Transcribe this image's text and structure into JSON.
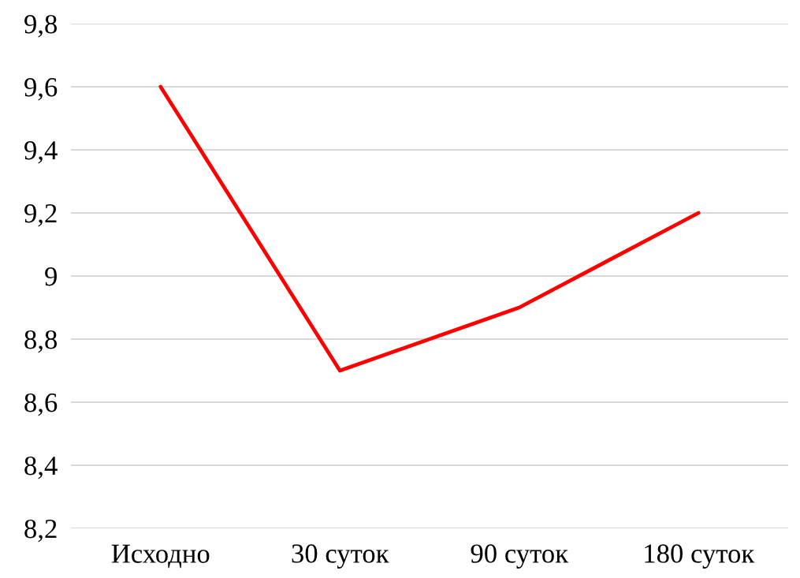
{
  "chart_data": {
    "type": "line",
    "categories": [
      "Исходно",
      "30 суток",
      "90 суток",
      "180 суток"
    ],
    "series": [
      {
        "color": "#ff0000",
        "values": [
          9.6,
          8.7,
          8.9,
          9.2
        ]
      }
    ],
    "ylim": [
      8.2,
      9.8
    ],
    "yticks": [
      {
        "value": 8.2,
        "label": "8,2"
      },
      {
        "value": 8.4,
        "label": "8,4"
      },
      {
        "value": 8.6,
        "label": "8,6"
      },
      {
        "value": 8.8,
        "label": "8,8"
      },
      {
        "value": 9,
        "label": "9"
      },
      {
        "value": 9.2,
        "label": "9,2"
      },
      {
        "value": 9.4,
        "label": "9,4"
      },
      {
        "value": 9.6,
        "label": "9,6"
      },
      {
        "value": 9.8,
        "label": "9,8"
      }
    ],
    "grid": "y",
    "marker": "none",
    "line_style": "solid"
  }
}
